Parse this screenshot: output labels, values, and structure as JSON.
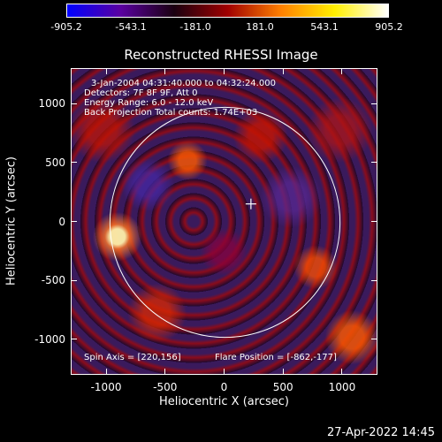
{
  "colorbar": {
    "ticks": [
      "-905.2",
      "-543.1",
      "-181.0",
      "181.0",
      "543.1",
      "905.2"
    ],
    "colors": [
      "#0000ff",
      "#5a00a0",
      "#1a0010",
      "#a00000",
      "#ff8000",
      "#fff000",
      "#ffffff"
    ]
  },
  "plot": {
    "title": "Reconstructed RHESSI Image",
    "info_lines": [
      "3-Jan-2004 04:31:40.000 to 04:32:24.000",
      "Detectors: 7F 8F 9F, Att 0",
      "Energy Range: 6.0 - 12.0 keV",
      "Back Projection    Total counts: 1.74E+03"
    ],
    "spin_axis": "Spin Axis = [220,156]",
    "flare_position": "Flare Position = [-862,-177]"
  },
  "chart_data": {
    "type": "heatmap",
    "title": "Reconstructed RHESSI Image",
    "xlabel": "Heliocentric X (arcsec)",
    "ylabel": "Heliocentric Y (arcsec)",
    "xlim": [
      -1300,
      1300
    ],
    "ylim": [
      -1300,
      1300
    ],
    "x_ticks": [
      "-1000",
      "-500",
      "0",
      "500",
      "1000"
    ],
    "y_ticks": [
      "-1000",
      "-500",
      "0",
      "500",
      "1000"
    ],
    "color_range": [
      -905.2,
      905.2
    ],
    "solar_limb_radius_arcsec": 975,
    "cross_marker": [
      220,
      156
    ],
    "brightest_source": [
      -862,
      -177
    ]
  },
  "timestamp": "27-Apr-2022 14:45"
}
